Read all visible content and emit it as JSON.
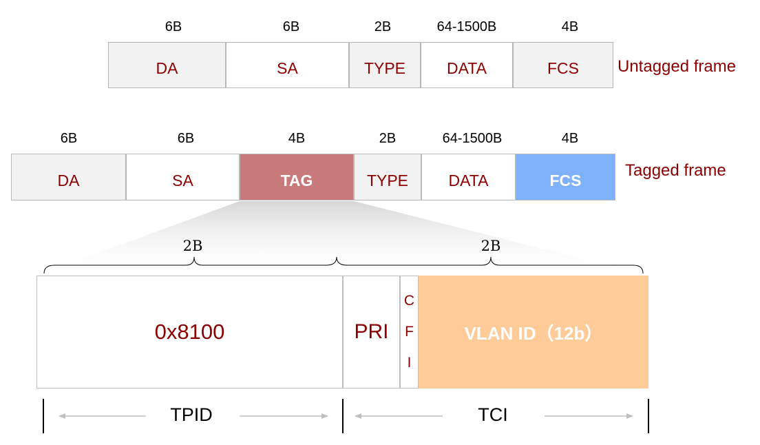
{
  "untagged": {
    "label": "Untagged frame",
    "fields": [
      {
        "name": "DA",
        "size": "6B"
      },
      {
        "name": "SA",
        "size": "6B"
      },
      {
        "name": "TYPE",
        "size": "2B"
      },
      {
        "name": "DATA",
        "size": "64-1500B"
      },
      {
        "name": "FCS",
        "size": "4B"
      }
    ]
  },
  "tagged": {
    "label": "Tagged frame",
    "fields": [
      {
        "name": "DA",
        "size": "6B"
      },
      {
        "name": "SA",
        "size": "6B"
      },
      {
        "name": "TAG",
        "size": "4B"
      },
      {
        "name": "TYPE",
        "size": "2B"
      },
      {
        "name": "DATA",
        "size": "64-1500B"
      },
      {
        "name": "FCS",
        "size": "4B"
      }
    ]
  },
  "tag_detail": {
    "tpid_size": "2B",
    "tci_size": "2B",
    "tpid_value": "0x8100",
    "pri": "PRI",
    "cfi_letters": [
      "C",
      "F",
      "I"
    ],
    "vlan_id": "VLAN ID（12b）",
    "tpid_label": "TPID",
    "tci_label": "TCI"
  },
  "colors": {
    "field_text": "#8b0000",
    "tag_fill": "#c87a7a",
    "fcs_fill": "#7fb1fb",
    "vlan_fill": "#fecb99",
    "gray_fill": "#f2f2f2"
  }
}
